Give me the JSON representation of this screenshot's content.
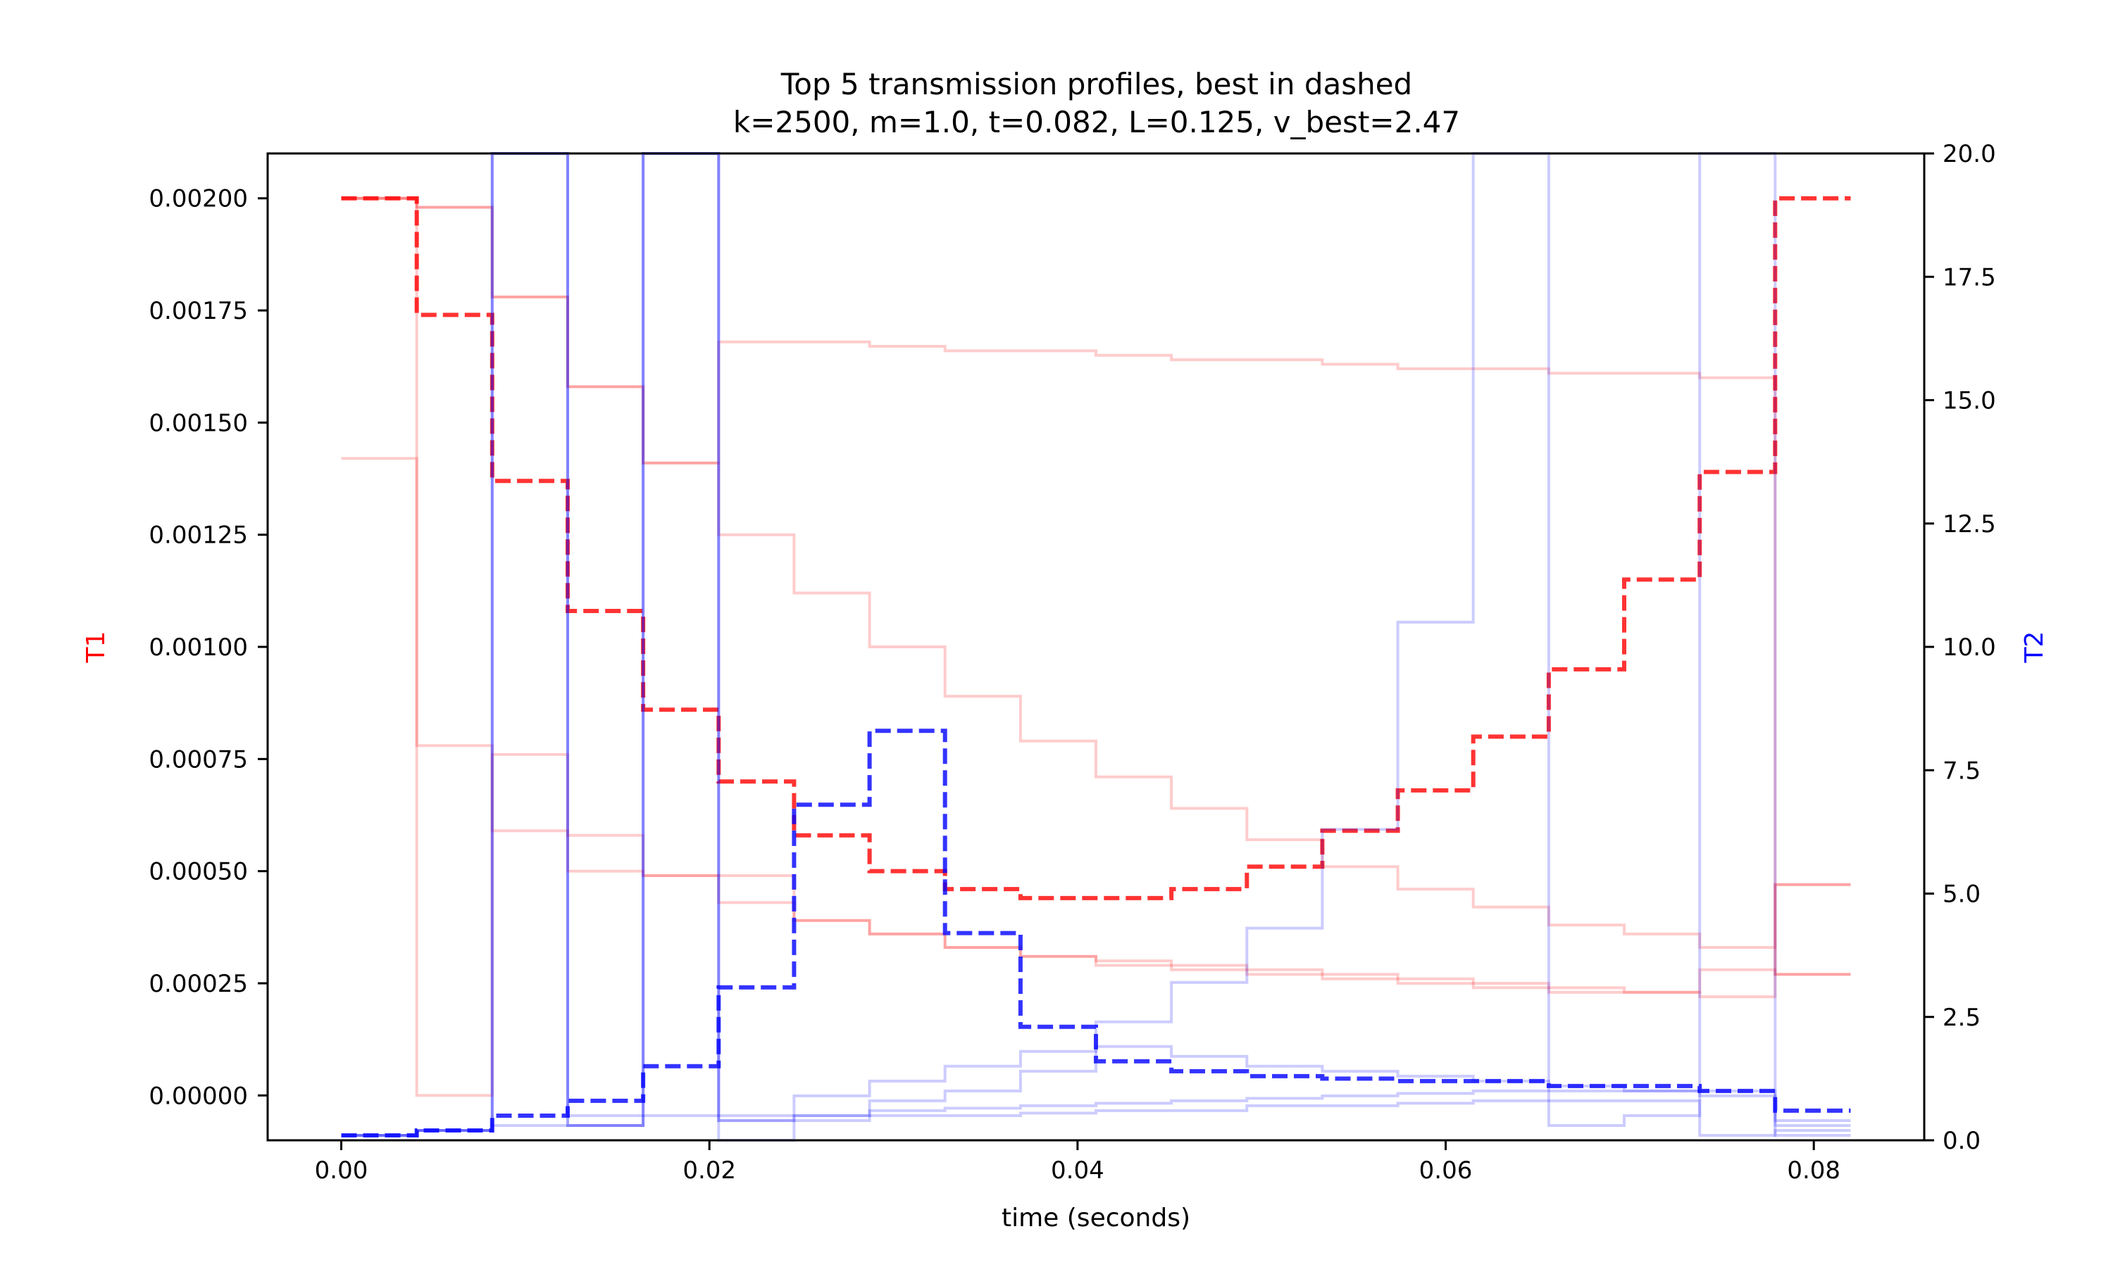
{
  "chart_data": {
    "type": "line",
    "subtype": "step",
    "title": "Top 5 transmission profiles, best in dashed",
    "subtitle": "k=2500, m=1.0, t=0.082, L=0.125, v_best=2.47",
    "xlabel": "time (seconds)",
    "ylabel_left": "T1",
    "ylabel_right": "T2",
    "xlim": [
      -0.004,
      0.086
    ],
    "ylim_left": [
      -0.0001,
      0.0021
    ],
    "ylim_right": [
      0,
      20
    ],
    "x_ticks": [
      0.0,
      0.02,
      0.04,
      0.06,
      0.08
    ],
    "x_tick_labels": [
      "0.00",
      "0.02",
      "0.04",
      "0.06",
      "0.08"
    ],
    "y_left_ticks": [
      0.0,
      0.00025,
      0.0005,
      0.00075,
      0.001,
      0.00125,
      0.0015,
      0.00175,
      0.002
    ],
    "y_left_tick_labels": [
      "0.00000",
      "0.00025",
      "0.00050",
      "0.00075",
      "0.00100",
      "0.00125",
      "0.00150",
      "0.00175",
      "0.00200"
    ],
    "y_right_ticks": [
      0,
      2.5,
      5,
      7.5,
      10,
      12.5,
      15,
      17.5,
      20
    ],
    "y_right_tick_labels": [
      "0.0",
      "2.5",
      "5.0",
      "7.5",
      "10.0",
      "12.5",
      "15.0",
      "17.5",
      "20.0"
    ],
    "colors": {
      "t1": "#ff0000",
      "t2": "#0000ff"
    },
    "grid": false,
    "legend": "none",
    "x_steps": [
      0.0,
      0.0041,
      0.0082,
      0.0123,
      0.0164,
      0.0205,
      0.0246,
      0.0287,
      0.0328,
      0.0369,
      0.041,
      0.0451,
      0.0492,
      0.0533,
      0.0574,
      0.0615,
      0.0656,
      0.0697,
      0.0738,
      0.0779,
      0.082
    ],
    "series_t1": [
      {
        "dashed": true,
        "values": [
          0.002,
          0.00174,
          0.00137,
          0.00108,
          0.00086,
          0.0007,
          0.00058,
          0.0005,
          0.00046,
          0.00044,
          0.00044,
          0.00046,
          0.00051,
          0.00059,
          0.00068,
          0.0008,
          0.00095,
          0.00115,
          0.00139,
          0.002
        ]
      },
      {
        "dashed": false,
        "values": [
          0.002,
          0.0,
          0.00076,
          0.00058,
          0.00049,
          0.00043,
          0.00039,
          0.00036,
          0.00033,
          0.00031,
          0.00029,
          0.00028,
          0.00027,
          0.00026,
          0.00025,
          0.00024,
          0.00023,
          0.00023,
          0.00022,
          0.00047
        ]
      },
      {
        "dashed": false,
        "values": [
          0.00142,
          0.00078,
          0.00059,
          0.0005,
          0.00049,
          0.00049,
          0.00039,
          0.00036,
          0.00033,
          0.00031,
          0.0003,
          0.00029,
          0.00028,
          0.00027,
          0.00026,
          0.00025,
          0.00024,
          0.00023,
          0.00028,
          0.00027
        ]
      },
      {
        "dashed": false,
        "values": [
          0.002,
          0.00198,
          0.00178,
          0.00158,
          0.00141,
          0.00125,
          0.00112,
          0.001,
          0.00089,
          0.00079,
          0.00071,
          0.00064,
          0.00057,
          0.00051,
          0.00046,
          0.00042,
          0.00038,
          0.00036,
          0.00033,
          0.00047
        ]
      },
      {
        "dashed": false,
        "values": [
          0.002,
          0.00198,
          0.00178,
          0.00158,
          0.00141,
          0.00168,
          0.00168,
          0.00167,
          0.00166,
          0.00166,
          0.00165,
          0.00164,
          0.00164,
          0.00163,
          0.00162,
          0.00162,
          0.00161,
          0.00161,
          0.0016,
          0.00027
        ]
      }
    ],
    "series_t2": [
      {
        "dashed": true,
        "values": [
          0.1,
          0.2,
          0.5,
          0.8,
          1.5,
          3.1,
          6.8,
          8.3,
          4.2,
          2.3,
          1.6,
          1.4,
          1.3,
          1.25,
          1.2,
          1.2,
          1.1,
          1.1,
          1.0,
          0.6
        ]
      },
      {
        "dashed": false,
        "values": [
          0.1,
          0.2,
          20,
          0.5,
          20,
          0.5,
          0.9,
          1.2,
          1.5,
          1.8,
          2.4,
          3.2,
          4.3,
          6.3,
          10.5,
          20,
          0.3,
          0.5,
          20,
          0.1
        ]
      },
      {
        "dashed": false,
        "values": [
          0.1,
          0.2,
          20,
          0.3,
          20,
          0.4,
          0.5,
          0.6,
          0.65,
          0.7,
          0.75,
          0.8,
          0.85,
          0.9,
          0.95,
          1.0,
          1.0,
          1.0,
          1.0,
          0.3
        ]
      },
      {
        "dashed": false,
        "values": [
          0.1,
          0.2,
          0.3,
          0.3,
          0.5,
          0.0,
          0.5,
          0.8,
          1.0,
          1.4,
          1.9,
          1.7,
          1.5,
          1.4,
          1.3,
          1.2,
          1.1,
          1.0,
          0.9,
          0.4
        ]
      },
      {
        "dashed": false,
        "values": [
          0.1,
          0.2,
          20,
          0.3,
          20,
          0.4,
          0.4,
          0.5,
          0.5,
          0.55,
          0.6,
          0.6,
          0.7,
          0.7,
          0.75,
          0.8,
          0.8,
          0.8,
          0.1,
          0.2
        ]
      }
    ]
  }
}
